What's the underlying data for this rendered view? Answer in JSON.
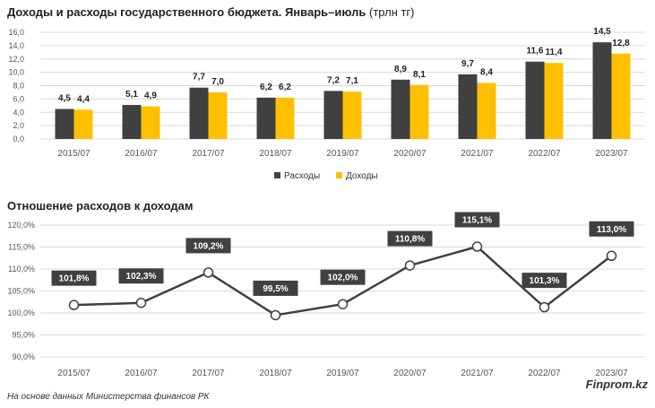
{
  "colors": {
    "expenses": "#404040",
    "income": "#FFC000",
    "line": "#404040",
    "label_bg": "#404040",
    "grid": "#d9d9d9"
  },
  "chart_data": [
    {
      "type": "bar",
      "title": "Доходы и расходы государственного бюджета. Январь–июль",
      "unit": "(трлн тг)",
      "categories": [
        "2015/07",
        "2016/07",
        "2017/07",
        "2018/07",
        "2019/07",
        "2020/07",
        "2021/07",
        "2022/07",
        "2023/07"
      ],
      "series": [
        {
          "name": "Расходы",
          "values": [
            4.5,
            5.1,
            7.7,
            6.2,
            7.2,
            8.9,
            9.7,
            11.6,
            14.5
          ],
          "labels": [
            "4,5",
            "5,1",
            "7,7",
            "6,2",
            "7,2",
            "8,9",
            "9,7",
            "11,6",
            "14,5"
          ]
        },
        {
          "name": "Доходы",
          "values": [
            4.4,
            4.9,
            7.0,
            6.2,
            7.1,
            8.1,
            8.4,
            11.4,
            12.8
          ],
          "labels": [
            "4,4",
            "4,9",
            "7,0",
            "6,2",
            "7,1",
            "8,1",
            "8,4",
            "11,4",
            "12,8"
          ]
        }
      ],
      "ylim": [
        0,
        16
      ],
      "yticks": [
        "0,0",
        "2,0",
        "4,0",
        "6,0",
        "8,0",
        "10,0",
        "12,0",
        "14,0",
        "16,0"
      ],
      "grid": true,
      "legend_position": "bottom"
    },
    {
      "type": "line",
      "title": "Отношение расходов к доходам",
      "categories": [
        "2015/07",
        "2016/07",
        "2017/07",
        "2018/07",
        "2019/07",
        "2020/07",
        "2021/07",
        "2022/07",
        "2023/07"
      ],
      "series": [
        {
          "values": [
            101.8,
            102.3,
            109.2,
            99.5,
            102.0,
            110.8,
            115.1,
            101.3,
            113.0
          ],
          "labels": [
            "101,8%",
            "102,3%",
            "109,2%",
            "99,5%",
            "102,0%",
            "110,8%",
            "115,1%",
            "101,3%",
            "113,0%"
          ]
        }
      ],
      "ylim": [
        90,
        120
      ],
      "yticks": [
        "90,0%",
        "95,0%",
        "100,0%",
        "105,0%",
        "110,0%",
        "115,0%",
        "120,0%"
      ],
      "grid": true
    }
  ],
  "footer": {
    "source": "На основе данных Министерства финансов РК",
    "brand": "Finprom.kz"
  }
}
